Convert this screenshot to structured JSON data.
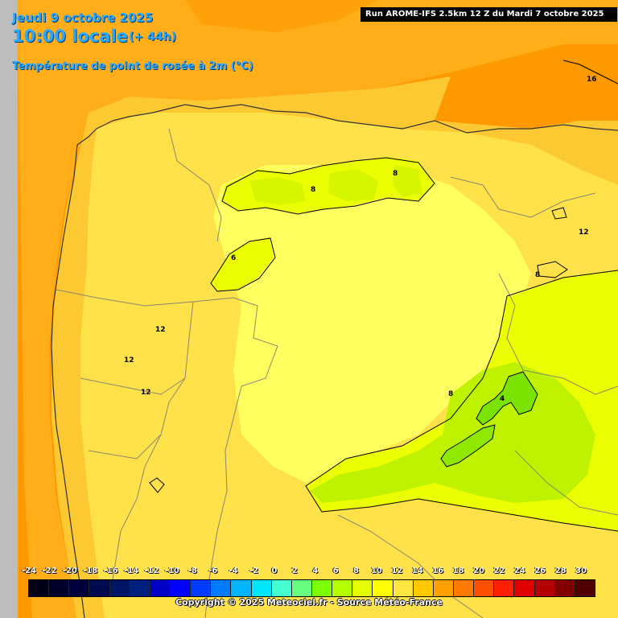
{
  "header": {
    "date": "Jeudi 9 octobre 2025",
    "time": "10:00 locale",
    "lead": "(+ 44h)",
    "parameter": "Température de point de rosée à 2m (°C)"
  },
  "run_info": "Run AROME-IFS 2.5km 12 Z du Mardi 7 octobre 2025",
  "contour_labels": [
    "16",
    "8",
    "8",
    "12",
    "6",
    "8",
    "12",
    "12",
    "12",
    "8",
    "4"
  ],
  "legend": {
    "ticks": [
      "-24",
      "-22",
      "-20",
      "-18",
      "-16",
      "-14",
      "-12",
      "-10",
      "-8",
      "-6",
      "-4",
      "-2",
      "0",
      "2",
      "4",
      "6",
      "8",
      "10",
      "12",
      "14",
      "16",
      "18",
      "20",
      "22",
      "24",
      "26",
      "28",
      "30"
    ],
    "colors": [
      "#000018",
      "#00002a",
      "#00003c",
      "#000a50",
      "#001664",
      "#002080",
      "#0000c8",
      "#0000ff",
      "#003cff",
      "#007aff",
      "#00b4ff",
      "#00e6ff",
      "#44ffd0",
      "#66ff80",
      "#7cff00",
      "#b4ff00",
      "#e6ff00",
      "#ffff00",
      "#ffe640",
      "#ffc800",
      "#ff9f00",
      "#ff7a00",
      "#ff5000",
      "#ff1e00",
      "#e00000",
      "#b40000",
      "#800000",
      "#500000"
    ]
  },
  "copyright": "Copyright © 2025 Meteociel.fr - Source Météo-France",
  "colors": {
    "sea_band_north": "#ff9900",
    "sea_band_west": "#ffa21a",
    "land_12_14": "#fcc933",
    "land_10_12": "#ffe14a",
    "land_8_10": "#ffff60",
    "land_6_8": "#ecff00",
    "land_4_6": "#bff200",
    "land_2_4": "#7ae400",
    "outside_domain": "#bdbdbd"
  }
}
